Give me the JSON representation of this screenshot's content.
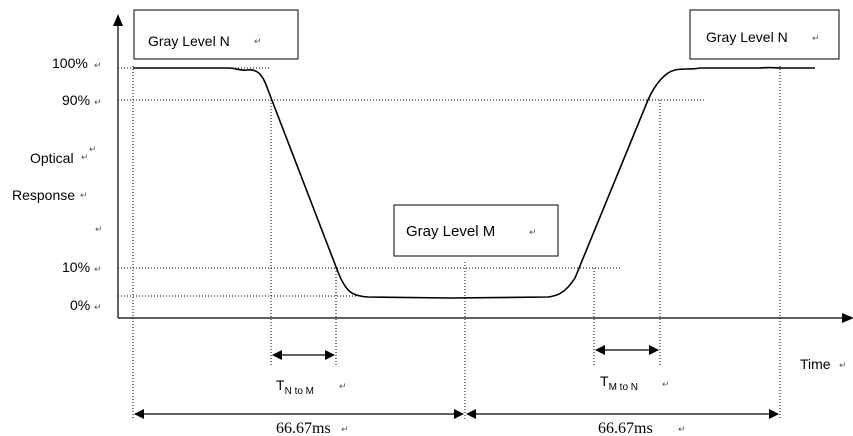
{
  "diagram": {
    "boxes": {
      "gray_level_n_left": "Gray Level N",
      "gray_level_m": "Gray Level M",
      "gray_level_n_right": "Gray Level N"
    },
    "y_axis": {
      "label_line1": "Optical",
      "label_line2": "Response",
      "ticks": {
        "t100": "100%",
        "t90": "90%",
        "t10": "10%",
        "t0": "0%"
      }
    },
    "x_axis": {
      "label": "Time"
    },
    "timings": {
      "t_n_to_m_main": "T",
      "t_n_to_m_sub": "N to M",
      "t_m_to_n_main": "T",
      "t_m_to_n_sub": "M to N",
      "period_left": "66.67ms",
      "period_right": "66.67ms"
    },
    "return_mark": "↵"
  }
}
